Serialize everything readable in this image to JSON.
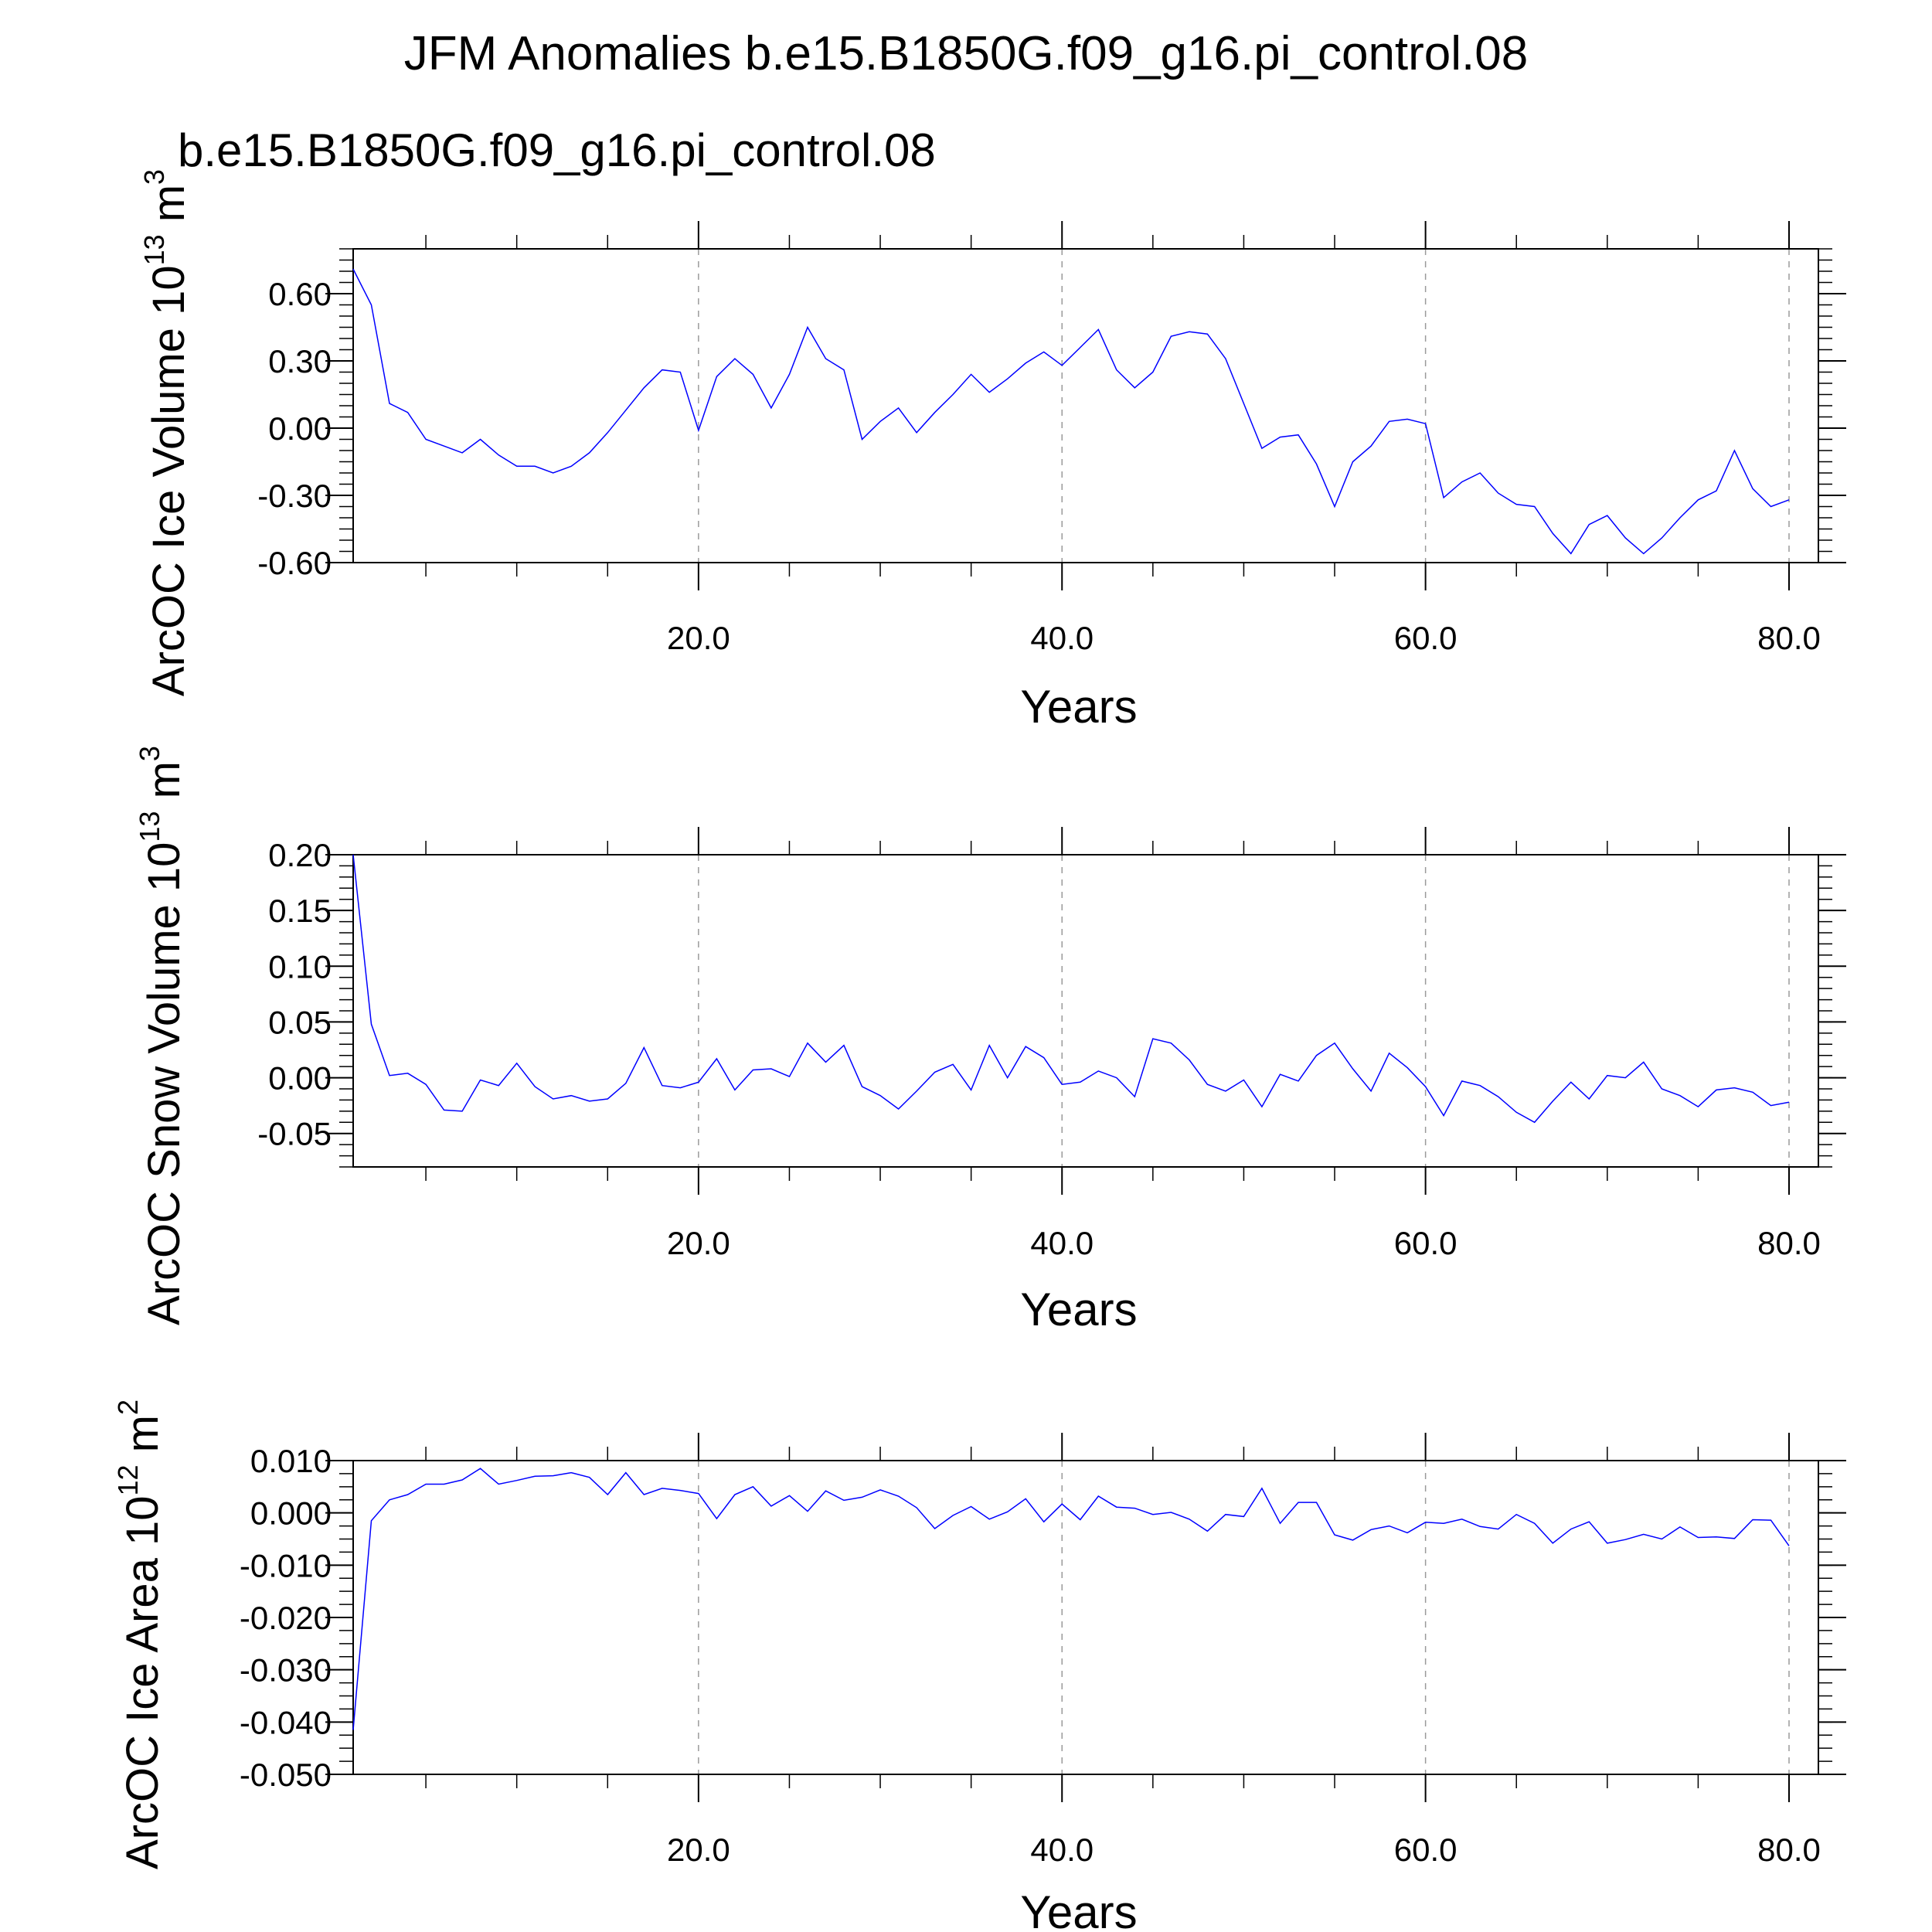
{
  "figure": {
    "title": "JFM Anomalies b.e15.B1850G.f09_g16.pi_control.08",
    "subtitle": "b.e15.B1850G.f09_g16.pi_control.08",
    "subtitle_color": "#0000ff",
    "line_color": "#0000ff"
  },
  "chart_data": [
    {
      "type": "line",
      "title": "",
      "xlabel": "Years",
      "ylabel": "ArcOC Ice Volume 10",
      "ylabel_exponent": "13",
      "ylabel_unit": " m",
      "ylabel_unit_exponent": "3",
      "xlim": [
        1,
        80
      ],
      "ylim": [
        -0.6,
        0.8
      ],
      "xticks": [
        20,
        40,
        60,
        80
      ],
      "xtick_labels": [
        "20.0",
        "40.0",
        "60.0",
        "80.0"
      ],
      "yticks": [
        -0.6,
        -0.3,
        0.0,
        0.3,
        0.6
      ],
      "ytick_labels": [
        "-0.60",
        "-0.30",
        "0.00",
        "0.30",
        "0.60"
      ],
      "grid": "vertical dashed at major x ticks",
      "series": [
        {
          "x": [
            1,
            2,
            3,
            4,
            5,
            6,
            7,
            8,
            9,
            10,
            11,
            12,
            13,
            14,
            15,
            16,
            17,
            18,
            19,
            20,
            21,
            22,
            23,
            24,
            25,
            26,
            27,
            28,
            29,
            30,
            31,
            32,
            33,
            34,
            35,
            36,
            37,
            38,
            39,
            40,
            41,
            42,
            43,
            44,
            45,
            46,
            47,
            48,
            49,
            50,
            51,
            52,
            53,
            54,
            55,
            56,
            57,
            58,
            59,
            60,
            61,
            62,
            63,
            64,
            65,
            66,
            67,
            68,
            69,
            70,
            71,
            72,
            73,
            74,
            75,
            76,
            77,
            78,
            79,
            80
          ],
          "values": [
            0.71,
            0.55,
            0.11,
            0.07,
            -0.05,
            -0.08,
            -0.11,
            -0.05,
            -0.12,
            -0.17,
            -0.17,
            -0.2,
            -0.17,
            -0.11,
            -0.02,
            0.08,
            0.18,
            0.26,
            0.25,
            -0.01,
            0.23,
            0.31,
            0.24,
            0.09,
            0.24,
            0.45,
            0.31,
            0.26,
            -0.05,
            0.03,
            0.09,
            -0.02,
            0.07,
            0.15,
            0.24,
            0.16,
            0.22,
            0.29,
            0.34,
            0.28,
            0.36,
            0.44,
            0.26,
            0.18,
            0.25,
            0.41,
            0.43,
            0.42,
            0.31,
            0.11,
            -0.09,
            -0.04,
            -0.03,
            -0.16,
            -0.35,
            -0.15,
            -0.08,
            0.03,
            0.04,
            0.02,
            -0.31,
            -0.24,
            -0.2,
            -0.29,
            -0.34,
            -0.35,
            -0.47,
            -0.56,
            -0.43,
            -0.39,
            -0.49,
            -0.56,
            -0.49,
            -0.4,
            -0.32,
            -0.28,
            -0.1,
            -0.27,
            -0.35,
            -0.32
          ]
        }
      ]
    },
    {
      "type": "line",
      "title": "",
      "xlabel": "Years",
      "ylabel": "ArcOC Snow Volume 10",
      "ylabel_exponent": "13",
      "ylabel_unit": " m",
      "ylabel_unit_exponent": "3",
      "xlim": [
        1,
        80
      ],
      "ylim": [
        -0.08,
        0.2
      ],
      "xticks": [
        20,
        40,
        60,
        80
      ],
      "xtick_labels": [
        "20.0",
        "40.0",
        "60.0",
        "80.0"
      ],
      "yticks": [
        -0.05,
        0.0,
        0.05,
        0.1,
        0.15,
        0.2
      ],
      "ytick_labels": [
        "-0.05",
        "0.00",
        "0.05",
        "0.10",
        "0.15",
        "0.20"
      ],
      "grid": "vertical dashed at major x ticks",
      "series": [
        {
          "x": [
            1,
            2,
            3,
            4,
            5,
            6,
            7,
            8,
            9,
            10,
            11,
            12,
            13,
            14,
            15,
            16,
            17,
            18,
            19,
            20,
            21,
            22,
            23,
            24,
            25,
            26,
            27,
            28,
            29,
            30,
            31,
            32,
            33,
            34,
            35,
            36,
            37,
            38,
            39,
            40,
            41,
            42,
            43,
            44,
            45,
            46,
            47,
            48,
            49,
            50,
            51,
            52,
            53,
            54,
            55,
            56,
            57,
            58,
            59,
            60,
            61,
            62,
            63,
            64,
            65,
            66,
            67,
            68,
            69,
            70,
            71,
            72,
            73,
            74,
            75,
            76,
            77,
            78,
            79,
            80
          ],
          "values": [
            0.2,
            0.048,
            0.002,
            0.004,
            -0.006,
            -0.029,
            -0.03,
            -0.002,
            -0.007,
            0.013,
            -0.008,
            -0.019,
            -0.016,
            -0.021,
            -0.019,
            -0.005,
            0.027,
            -0.007,
            -0.009,
            -0.004,
            0.017,
            -0.011,
            0.007,
            0.008,
            0.001,
            0.031,
            0.014,
            0.029,
            -0.008,
            -0.016,
            -0.028,
            -0.012,
            0.005,
            0.012,
            -0.011,
            0.029,
            0.0,
            0.028,
            0.018,
            -0.006,
            -0.004,
            0.006,
            0.0,
            -0.017,
            0.035,
            0.031,
            0.016,
            -0.006,
            -0.012,
            -0.002,
            -0.026,
            0.003,
            -0.003,
            0.02,
            0.031,
            0.008,
            -0.012,
            0.022,
            0.009,
            -0.008,
            -0.034,
            -0.003,
            -0.007,
            -0.017,
            -0.031,
            -0.04,
            -0.021,
            -0.004,
            -0.019,
            0.002,
            0.0,
            0.014,
            -0.01,
            -0.016,
            -0.026,
            -0.011,
            -0.009,
            -0.013,
            -0.025,
            -0.022
          ]
        }
      ]
    },
    {
      "type": "line",
      "title": "",
      "xlabel": "Years",
      "ylabel": "ArcOC Ice Area 10",
      "ylabel_exponent": "12",
      "ylabel_unit": " m",
      "ylabel_unit_exponent": "2",
      "xlim": [
        1,
        80
      ],
      "ylim": [
        -0.05,
        0.01
      ],
      "xticks": [
        20,
        40,
        60,
        80
      ],
      "xtick_labels": [
        "20.0",
        "40.0",
        "60.0",
        "80.0"
      ],
      "yticks": [
        -0.05,
        -0.04,
        -0.03,
        -0.02,
        -0.01,
        0.0,
        0.01
      ],
      "ytick_labels": [
        "-0.050",
        "-0.040",
        "-0.030",
        "-0.020",
        "-0.010",
        "0.000",
        "0.010"
      ],
      "grid": "vertical dashed at major x ticks",
      "series": [
        {
          "x": [
            1,
            2,
            3,
            4,
            5,
            6,
            7,
            8,
            9,
            10,
            11,
            12,
            13,
            14,
            15,
            16,
            17,
            18,
            19,
            20,
            21,
            22,
            23,
            24,
            25,
            26,
            27,
            28,
            29,
            30,
            31,
            32,
            33,
            34,
            35,
            36,
            37,
            38,
            39,
            40,
            41,
            42,
            43,
            44,
            45,
            46,
            47,
            48,
            49,
            50,
            51,
            52,
            53,
            54,
            55,
            56,
            57,
            58,
            59,
            60,
            61,
            62,
            63,
            64,
            65,
            66,
            67,
            68,
            69,
            70,
            71,
            72,
            73,
            74,
            75,
            76,
            77,
            78,
            79,
            80
          ],
          "values": [
            -0.0415,
            -0.0015,
            0.0025,
            0.0035,
            0.0055,
            0.0055,
            0.0063,
            0.0085,
            0.0055,
            0.0062,
            0.007,
            0.0071,
            0.0077,
            0.0068,
            0.0035,
            0.0077,
            0.0035,
            0.0047,
            0.0043,
            0.0037,
            -0.0011,
            0.0035,
            0.005,
            0.0013,
            0.0033,
            0.0003,
            0.0042,
            0.0024,
            0.003,
            0.0044,
            0.0032,
            0.001,
            -0.003,
            -0.0005,
            0.0012,
            -0.0012,
            0.0002,
            0.0027,
            -0.0017,
            0.0017,
            -0.0013,
            0.0032,
            0.0011,
            0.0009,
            -0.0003,
            0.0001,
            -0.0012,
            -0.0035,
            -0.0003,
            -0.0007,
            0.0047,
            -0.002,
            0.002,
            0.002,
            -0.0042,
            -0.0052,
            -0.0032,
            -0.0025,
            -0.0038,
            -0.0018,
            -0.002,
            -0.0012,
            -0.0026,
            -0.0031,
            -0.0003,
            -0.002,
            -0.0058,
            -0.0031,
            -0.0017,
            -0.0058,
            -0.0051,
            -0.0041,
            -0.005,
            -0.0027,
            -0.0047,
            -0.0046,
            -0.0049,
            -0.0013,
            -0.0014,
            -0.0063
          ]
        }
      ]
    }
  ]
}
